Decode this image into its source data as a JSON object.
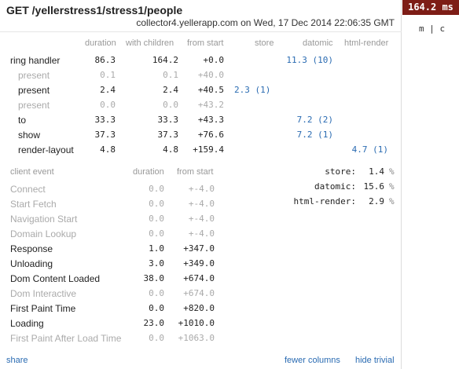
{
  "header": {
    "title": "GET /yellerstress1/stress1/people",
    "subtitle": "collector4.yellerapp.com on Wed, 17 Dec 2014 22:06:35 GMT"
  },
  "server_table": {
    "columns": [
      "duration",
      "with children",
      "from start",
      "store",
      "datomic",
      "html-render"
    ],
    "rows": [
      {
        "label": "ring handler",
        "duration": "86.3",
        "children": "164.2",
        "start": "+0.0",
        "store": "",
        "datomic": "11.3 (10)",
        "html": "",
        "dim": false
      },
      {
        "label": "present",
        "duration": "0.1",
        "children": "0.1",
        "start": "+40.0",
        "store": "",
        "datomic": "",
        "html": "",
        "dim": true
      },
      {
        "label": "present",
        "duration": "2.4",
        "children": "2.4",
        "start": "+40.5",
        "store": "2.3 (1)",
        "datomic": "",
        "html": "",
        "dim": false
      },
      {
        "label": "present",
        "duration": "0.0",
        "children": "0.0",
        "start": "+43.2",
        "store": "",
        "datomic": "",
        "html": "",
        "dim": true
      },
      {
        "label": "to",
        "duration": "33.3",
        "children": "33.3",
        "start": "+43.3",
        "store": "",
        "datomic": "7.2 (2)",
        "html": "",
        "dim": false
      },
      {
        "label": "show",
        "duration": "37.3",
        "children": "37.3",
        "start": "+76.6",
        "store": "",
        "datomic": "7.2 (1)",
        "html": "",
        "dim": false
      },
      {
        "label": "render-layout",
        "duration": "4.8",
        "children": "4.8",
        "start": "+159.4",
        "store": "",
        "datomic": "",
        "html": "4.7 (1)",
        "dim": false
      }
    ]
  },
  "client_table": {
    "columns": [
      "client event",
      "duration",
      "from start"
    ],
    "rows": [
      {
        "label": "Connect",
        "duration": "0.0",
        "start": "+-4.0",
        "dim": true
      },
      {
        "label": "Start Fetch",
        "duration": "0.0",
        "start": "+-4.0",
        "dim": true
      },
      {
        "label": "Navigation Start",
        "duration": "0.0",
        "start": "+-4.0",
        "dim": true
      },
      {
        "label": "Domain Lookup",
        "duration": "0.0",
        "start": "+-4.0",
        "dim": true
      },
      {
        "label": "Response",
        "duration": "1.0",
        "start": "+347.0",
        "dim": false
      },
      {
        "label": "Unloading",
        "duration": "3.0",
        "start": "+349.0",
        "dim": false
      },
      {
        "label": "Dom Content Loaded",
        "duration": "38.0",
        "start": "+674.0",
        "dim": false
      },
      {
        "label": "Dom Interactive",
        "duration": "0.0",
        "start": "+674.0",
        "dim": true
      },
      {
        "label": "First Paint Time",
        "duration": "0.0",
        "start": "+820.0",
        "dim": false
      },
      {
        "label": "Loading",
        "duration": "23.0",
        "start": "+1010.0",
        "dim": false
      },
      {
        "label": "First Paint After Load Time",
        "duration": "0.0",
        "start": "+1063.0",
        "dim": true
      }
    ]
  },
  "summary": [
    {
      "label": "store:",
      "value": "1.4",
      "unit": "%"
    },
    {
      "label": "datomic:",
      "value": "15.6",
      "unit": "%"
    },
    {
      "label": "html-render:",
      "value": "2.9",
      "unit": "%"
    }
  ],
  "footer": {
    "share": "share",
    "fewer_columns": "fewer columns",
    "hide_trivial": "hide trivial"
  },
  "badge": {
    "value": "164.2 ms"
  },
  "toggle": {
    "m": "m",
    "sep": "|",
    "c": "c"
  }
}
